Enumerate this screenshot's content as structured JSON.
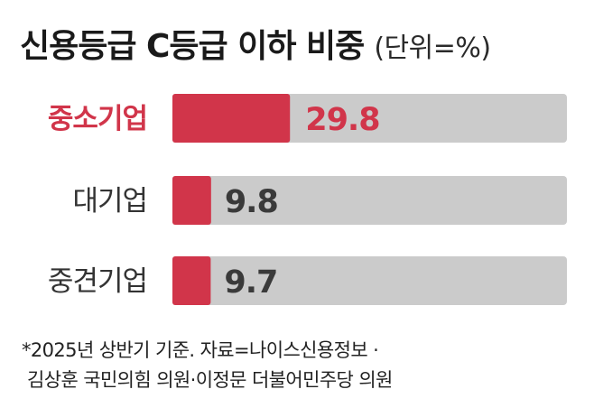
{
  "title": "신용등급 C등급 이하 비중",
  "unit": "(단위=%)",
  "colors": {
    "bar_fill": "#d1354a",
    "track": "#cbcbcb",
    "highlight_label": "#d1354a",
    "label": "#333333",
    "value_on_fill": "#ffffff",
    "value_on_track": "#3a3a3a"
  },
  "chart_data": {
    "type": "bar",
    "orientation": "horizontal",
    "categories": [
      "중소기업",
      "대기업",
      "중견기업"
    ],
    "values": [
      29.8,
      9.8,
      9.7
    ],
    "value_labels": [
      "29.8",
      "9.8",
      "9.7"
    ],
    "highlight": "중소기업",
    "xlim": [
      0,
      100
    ],
    "grid": false,
    "legend": "none"
  },
  "footnote": {
    "line1": "*2025년 상반기 기준. 자료=나이스신용정보 ·",
    "line2": "김상훈 국민의힘 의원·이정문 더불어민주당 의원"
  }
}
